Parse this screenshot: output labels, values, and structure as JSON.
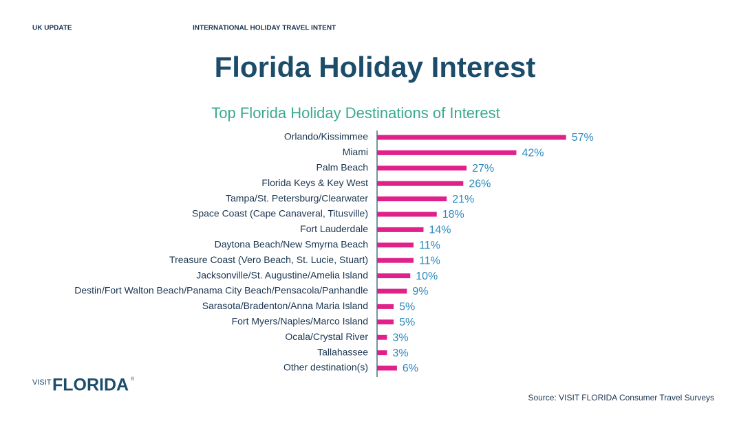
{
  "header": {
    "left": "UK UPDATE",
    "center": "INTERNATIONAL HOLIDAY TRAVEL INTENT"
  },
  "title": "Florida Holiday Interest",
  "chart_data": {
    "type": "bar",
    "orientation": "horizontal",
    "title": "Top Florida Holiday Destinations of Interest",
    "categories": [
      "Orlando/Kissimmee",
      "Miami",
      "Palm Beach",
      "Florida Keys & Key West",
      "Tampa/St. Petersburg/Clearwater",
      "Space Coast (Cape Canaveral, Titusville)",
      "Fort Lauderdale",
      "Daytona Beach/New Smyrna Beach",
      "Treasure Coast (Vero Beach, St. Lucie, Stuart)",
      "Jacksonville/St. Augustine/Amelia Island",
      "Destin/Fort Walton Beach/Panama City Beach/Pensacola/Panhandle",
      "Sarasota/Bradenton/Anna Maria Island",
      "Fort Myers/Naples/Marco Island",
      "Ocala/Crystal River",
      "Tallahassee",
      "Other destination(s)"
    ],
    "values": [
      57,
      42,
      27,
      26,
      21,
      18,
      14,
      11,
      11,
      10,
      9,
      5,
      5,
      3,
      3,
      6
    ],
    "value_labels": [
      "57%",
      "42%",
      "27%",
      "26%",
      "21%",
      "18%",
      "14%",
      "11%",
      "11%",
      "10%",
      "9%",
      "5%",
      "5%",
      "3%",
      "3%",
      "6%"
    ],
    "color": "#e0218a",
    "label_color": "#2a8abf"
  },
  "logo": {
    "visit": "VISIT",
    "brand": "FLORIDA",
    "mark": "®"
  },
  "source": "Source: VISIT FLORIDA Consumer Travel Surveys"
}
